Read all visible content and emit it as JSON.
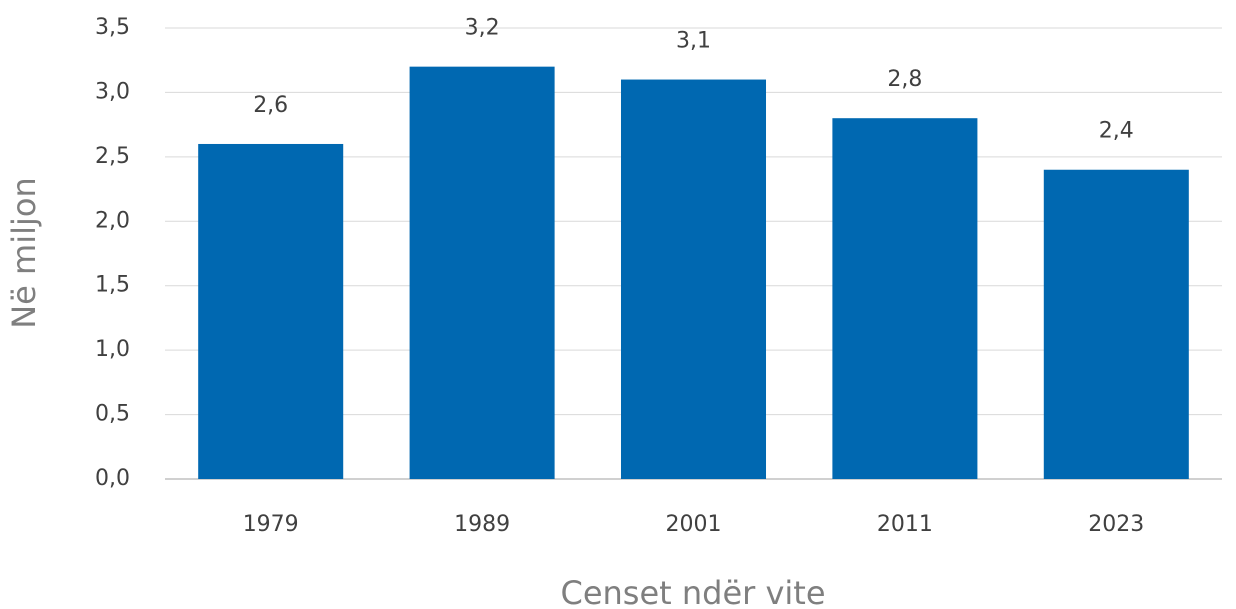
{
  "chart_data": {
    "type": "bar",
    "categories": [
      "1979",
      "1989",
      "2001",
      "2011",
      "2023"
    ],
    "values": [
      2.6,
      3.2,
      3.1,
      2.8,
      2.4
    ],
    "value_labels": [
      "2,6",
      "3,2",
      "3,1",
      "2,8",
      "2,4"
    ],
    "color": "#0068b1",
    "ylim": [
      0,
      3.5
    ],
    "yticks": [
      {
        "value": 0,
        "label": "0,0"
      },
      {
        "value": 0.5,
        "label": "0,5"
      },
      {
        "value": 1,
        "label": "1,0"
      },
      {
        "value": 1.5,
        "label": "1,5"
      },
      {
        "value": 2,
        "label": "2,0"
      },
      {
        "value": 2.5,
        "label": "2,5"
      },
      {
        "value": 3,
        "label": "3,0"
      },
      {
        "value": 3.5,
        "label": "3,5"
      }
    ],
    "grid": true,
    "y_label": "Në miljon",
    "x_label": "Censet ndër vite"
  }
}
